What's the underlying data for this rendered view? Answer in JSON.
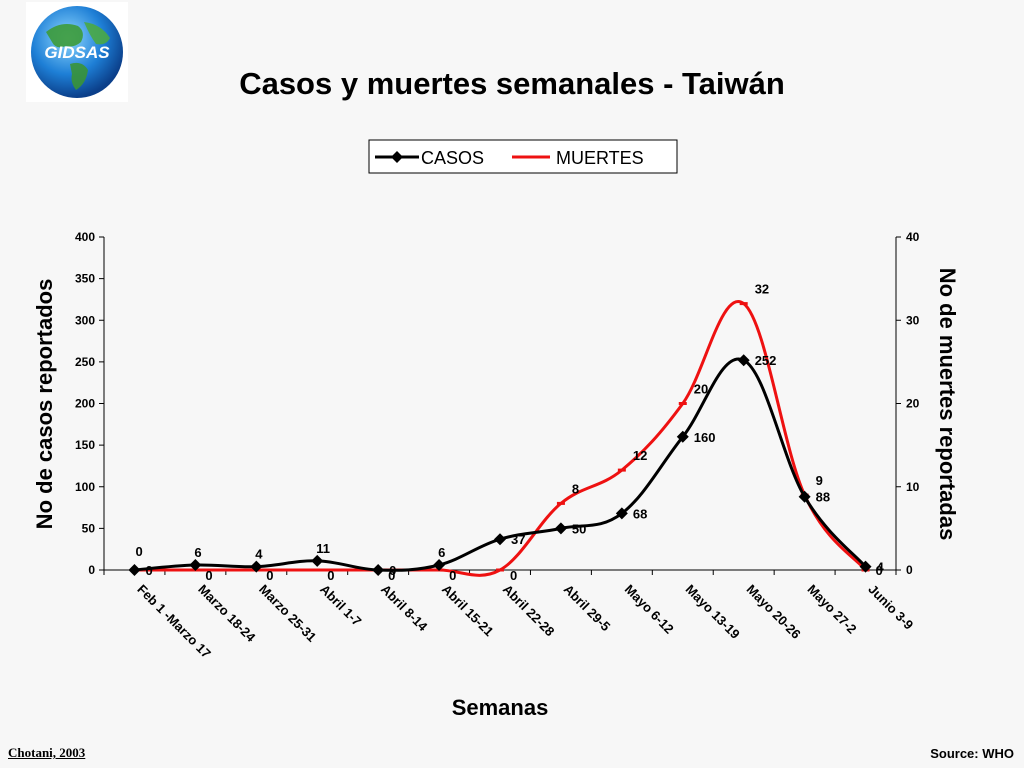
{
  "logo": {
    "text": "GIDSAS",
    "icon": "globe-icon"
  },
  "footer": {
    "author": "Chotani, 2003",
    "source": "Source: WHO"
  },
  "chart_data": {
    "type": "line",
    "title": "Casos y muertes semanales - Taiwán",
    "xlabel": "Semanas",
    "ylabel": "No de casos reportados",
    "y2label": "No de muertes reportadas",
    "ylim": [
      0,
      400
    ],
    "y2lim": [
      0,
      40
    ],
    "yticks": [
      0,
      50,
      100,
      150,
      200,
      250,
      300,
      350,
      400
    ],
    "y2ticks": [
      0,
      10,
      20,
      30,
      40
    ],
    "legend_position": "top-center",
    "grid": false,
    "categories": [
      "Feb 1 -Marzo 17",
      "Marzo 18-24",
      "Marzo 25-31",
      "Abril 1-7",
      "Abril 8-14",
      "Abril 15-21",
      "Abril 22-28",
      "Abril 29-5",
      "Mayo 6-12",
      "Mayo 13-19",
      "Mayo 20-26",
      "Mayo 27-2",
      "Junio 3-9"
    ],
    "series": [
      {
        "name": "CASOS",
        "axis": "left",
        "color": "#000000",
        "marker": "diamond",
        "values": [
          0,
          6,
          4,
          11,
          0,
          6,
          37,
          50,
          68,
          160,
          252,
          88,
          4
        ],
        "labels": [
          "0",
          "6",
          "4",
          "11",
          "0",
          "6",
          "37",
          "50",
          "68",
          "160",
          "252",
          "88",
          "4"
        ]
      },
      {
        "name": "MUERTES",
        "axis": "right",
        "color": "#ee1111",
        "marker": "dash",
        "values": [
          0,
          0,
          0,
          0,
          0,
          0,
          0,
          8,
          12,
          20,
          32,
          9,
          0
        ],
        "labels": [
          "0",
          "0",
          "0",
          "0",
          "0",
          "0",
          "0",
          "8",
          "12",
          "20",
          "32",
          "9",
          "0"
        ]
      }
    ]
  }
}
